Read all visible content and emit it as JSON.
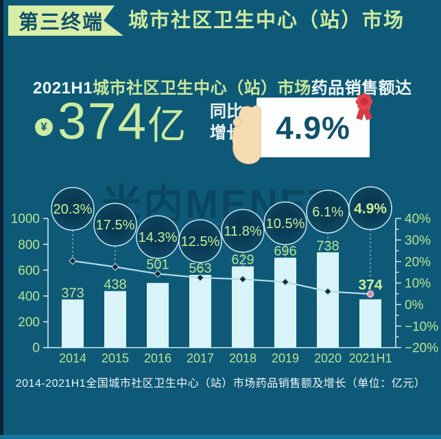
{
  "header": {
    "badge": "第三终端",
    "title": "城市社区卫生中心（站）市场"
  },
  "summary": {
    "line_prefix": "2021H1",
    "line_highlight": "城市社区卫生中心（站）市场",
    "line_suffix": "药品销售额达",
    "yuan_symbol": "¥",
    "amount_number": "374",
    "amount_unit": "亿",
    "growth_label_line1": "同比",
    "growth_label_line2": "增长",
    "growth_value": "4.9%"
  },
  "watermark": "米内MENET",
  "icons": [
    "yuan-coin-icon",
    "award-ribbon-icon",
    "hand-icon"
  ],
  "chart_data": {
    "type": "bar+line",
    "categories": [
      "2014",
      "2015",
      "2016",
      "2017",
      "2018",
      "2019",
      "2020",
      "2021H1"
    ],
    "series": [
      {
        "name": "药品销售额（亿元）",
        "type": "bar",
        "values": [
          373,
          438,
          501,
          563,
          629,
          696,
          738,
          374
        ]
      },
      {
        "name": "同比增长率",
        "type": "line",
        "values": [
          20.3,
          17.5,
          14.3,
          12.5,
          11.8,
          10.5,
          6.1,
          4.9
        ],
        "labels": [
          "20.3%",
          "17.5%",
          "14.3%",
          "12.5%",
          "11.8%",
          "10.5%",
          "6.1%",
          "4.9%"
        ]
      }
    ],
    "left_axis": {
      "min": 0,
      "max": 1000,
      "step": 200,
      "tick_labels": [
        "1000",
        "800",
        "600",
        "400",
        "200",
        "0"
      ]
    },
    "right_axis": {
      "min": -20,
      "max": 40,
      "step": 10,
      "minor_step": 5,
      "tick_labels": [
        "40%",
        "30%",
        "20%",
        "10%",
        "0%",
        "−10%",
        "−20%"
      ]
    },
    "legend": "off",
    "grid": "off",
    "caption": "2014-2021H1全国城市社区卫生中心（站）市场药品销售额及增长（单位：亿元）"
  },
  "colors": {
    "background": "#0e5977",
    "accent_green": "#cdeb9f",
    "label_green": "#b7e493",
    "bar_fill": "#d9f4f9",
    "line": "#b5dbe6",
    "axis": "#cfe8ee",
    "circle_fill_center": "#0a3a53",
    "circle_fill_edge": "#0e4e6a",
    "circle_stroke": "#c9e6ef",
    "marker_dark": "#16293a",
    "marker_pink": "#cf8fa9",
    "medal_red": "#e6414e",
    "card_white": "#fdffff",
    "hand_skin": "#f6dcb2"
  }
}
